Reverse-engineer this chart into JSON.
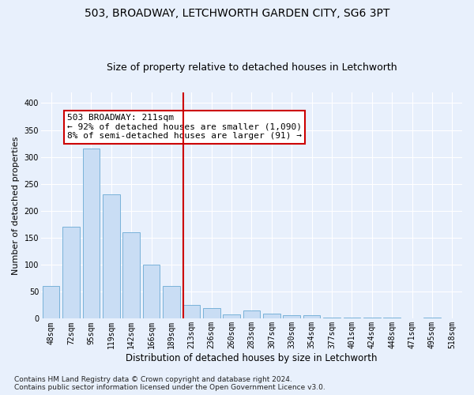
{
  "title": "503, BROADWAY, LETCHWORTH GARDEN CITY, SG6 3PT",
  "subtitle": "Size of property relative to detached houses in Letchworth",
  "xlabel": "Distribution of detached houses by size in Letchworth",
  "ylabel": "Number of detached properties",
  "bar_labels": [
    "48sqm",
    "72sqm",
    "95sqm",
    "119sqm",
    "142sqm",
    "166sqm",
    "189sqm",
    "213sqm",
    "236sqm",
    "260sqm",
    "283sqm",
    "307sqm",
    "330sqm",
    "354sqm",
    "377sqm",
    "401sqm",
    "424sqm",
    "448sqm",
    "471sqm",
    "495sqm",
    "518sqm"
  ],
  "bar_values": [
    60,
    170,
    315,
    230,
    160,
    100,
    60,
    25,
    20,
    8,
    15,
    10,
    7,
    7,
    2,
    2,
    2,
    2,
    1,
    2,
    1
  ],
  "bar_color": "#c9ddf4",
  "bar_edge_color": "#6aaad4",
  "vline_color": "#cc0000",
  "annotation_text": "503 BROADWAY: 211sqm\n← 92% of detached houses are smaller (1,090)\n8% of semi-detached houses are larger (91) →",
  "annotation_box_color": "#ffffff",
  "annotation_box_edge": "#cc0000",
  "ylim": [
    0,
    420
  ],
  "yticks": [
    0,
    50,
    100,
    150,
    200,
    250,
    300,
    350,
    400
  ],
  "footnote": "Contains HM Land Registry data © Crown copyright and database right 2024.\nContains public sector information licensed under the Open Government Licence v3.0.",
  "bg_color": "#e8f0fc",
  "plot_bg_color": "#e8f0fc",
  "grid_color": "#ffffff",
  "title_fontsize": 10,
  "subtitle_fontsize": 9,
  "xlabel_fontsize": 8.5,
  "ylabel_fontsize": 8,
  "tick_fontsize": 7,
  "annot_fontsize": 8,
  "footnote_fontsize": 6.5
}
